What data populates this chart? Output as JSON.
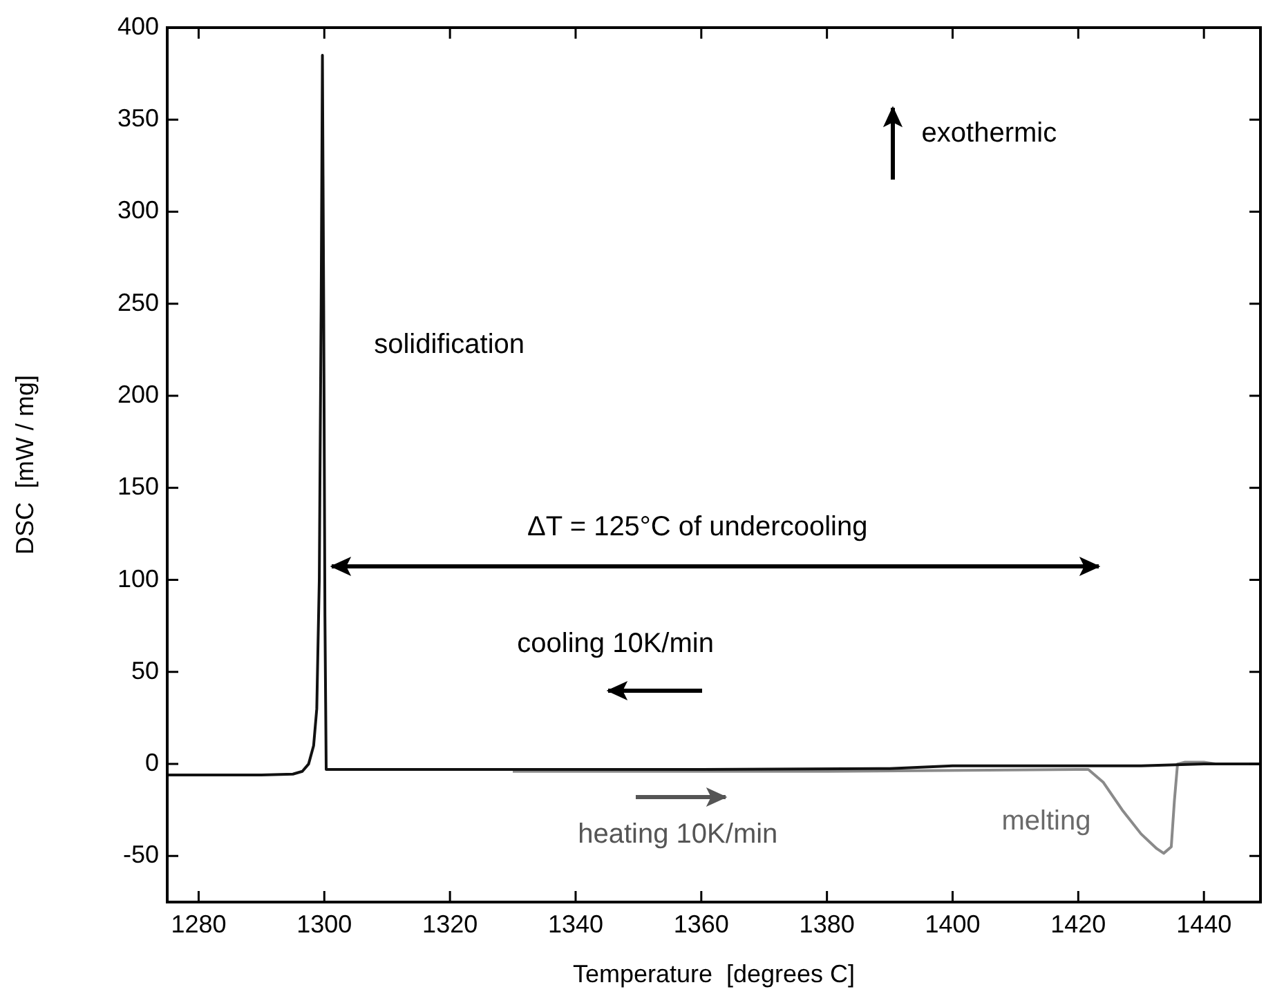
{
  "chart_data": {
    "type": "line",
    "xlabel": "Temperature  [degrees C]",
    "ylabel": "DSC  [mW / mg]",
    "xlim": [
      1275,
      1449
    ],
    "xticks": [
      1280,
      1300,
      1320,
      1340,
      1360,
      1380,
      1400,
      1420,
      1440
    ],
    "ylim": [
      -75,
      400
    ],
    "yticks": [
      -50,
      0,
      50,
      100,
      150,
      200,
      250,
      300,
      350,
      400
    ],
    "grid": false,
    "legend": false,
    "marker": "none",
    "line_style": "solid",
    "series": [
      {
        "color": "#111111",
        "x": [
          1275,
          1290,
          1295,
          1296.5,
          1297.5,
          1298.3,
          1298.8,
          1299.2,
          1299.5,
          1299.7,
          1299.9,
          1300.1,
          1300.3,
          1320,
          1360,
          1390,
          1400,
          1430,
          1440,
          1449
        ],
        "values": [
          -6,
          -6,
          -5.5,
          -4,
          0,
          10,
          30,
          100,
          250,
          385,
          250,
          80,
          -3,
          -3,
          -3,
          -2.5,
          -1,
          -1,
          0,
          0
        ]
      },
      {
        "color": "#8a8a8a",
        "x": [
          1330,
          1380,
          1420,
          1421.6,
          1424,
          1427,
          1430,
          1432.5,
          1433.6,
          1434.8,
          1435.3,
          1435.8,
          1437,
          1440,
          1442,
          1449
        ],
        "values": [
          -4,
          -4,
          -3,
          -3,
          -10,
          -25,
          -38,
          -46,
          -48.5,
          -45,
          -20,
          0,
          1,
          1,
          0,
          0
        ]
      }
    ],
    "annotations": [
      "solidification",
      "ΔT = 125°C of undercooling",
      "cooling 10K/min",
      "heating 10K/min",
      "melting",
      "exothermic"
    ]
  }
}
